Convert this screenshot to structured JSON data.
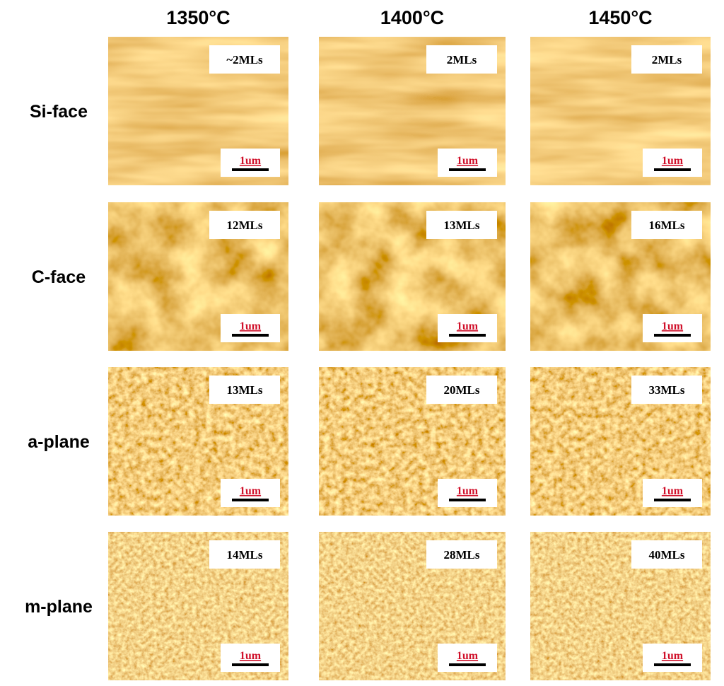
{
  "columns": [
    "1350°C",
    "1400°C",
    "1450°C"
  ],
  "rows": [
    {
      "label": "Si-face",
      "cells": [
        {
          "thickness": "~2MLs",
          "scale": "1um"
        },
        {
          "thickness": "2MLs",
          "scale": "1um"
        },
        {
          "thickness": "2MLs",
          "scale": "1um"
        }
      ]
    },
    {
      "label": "C-face",
      "cells": [
        {
          "thickness": "12MLs",
          "scale": "1um"
        },
        {
          "thickness": "13MLs",
          "scale": "1um"
        },
        {
          "thickness": "16MLs",
          "scale": "1um"
        }
      ]
    },
    {
      "label": "a-plane",
      "cells": [
        {
          "thickness": "13MLs",
          "scale": "1um"
        },
        {
          "thickness": "20MLs",
          "scale": "1um"
        },
        {
          "thickness": "33MLs",
          "scale": "1um"
        }
      ]
    },
    {
      "label": "m-plane",
      "cells": [
        {
          "thickness": "14MLs",
          "scale": "1um"
        },
        {
          "thickness": "28MLs",
          "scale": "1um"
        },
        {
          "thickness": "40MLs",
          "scale": "1um"
        }
      ]
    }
  ]
}
